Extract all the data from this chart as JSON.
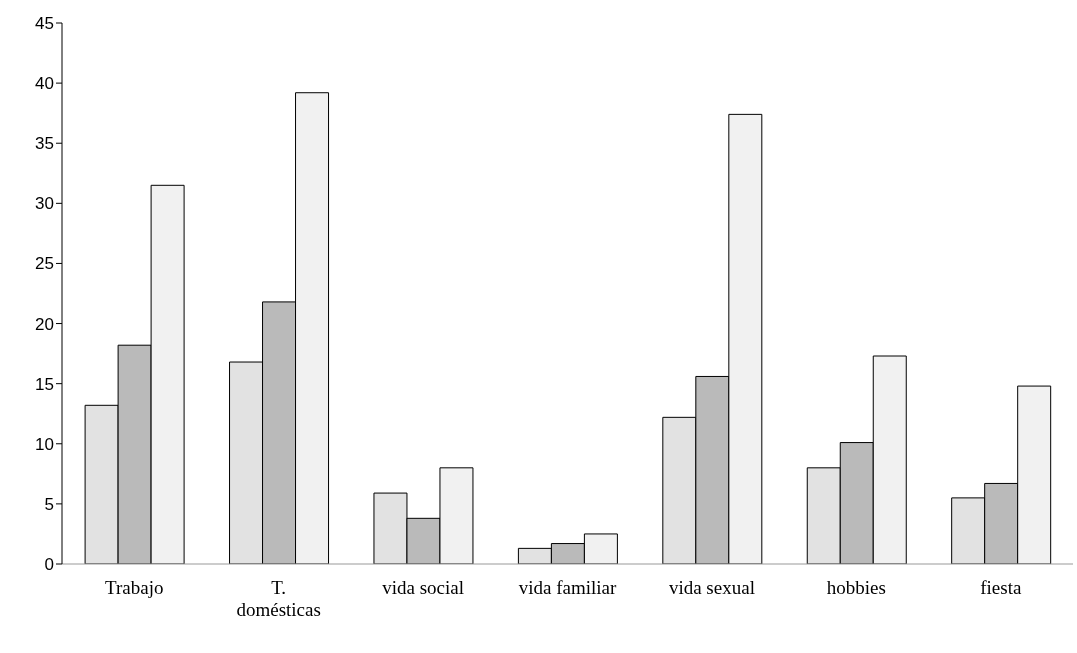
{
  "chart_data": {
    "type": "bar",
    "categories": [
      "Trabajo",
      "T.\ndomésticas",
      "vida social",
      "vida familiar",
      "vida sexual",
      "hobbies",
      "fiesta"
    ],
    "series": [
      {
        "color": "#e2e2e2",
        "values": [
          13.2,
          16.8,
          5.9,
          1.3,
          12.2,
          8.0,
          5.5
        ]
      },
      {
        "color": "#bababa",
        "values": [
          18.2,
          21.8,
          3.8,
          1.7,
          15.6,
          10.1,
          6.7
        ]
      },
      {
        "color": "#f1f1f1",
        "values": [
          31.5,
          39.2,
          8.0,
          2.5,
          37.4,
          17.3,
          14.8
        ]
      }
    ],
    "ylim": [
      0,
      45
    ],
    "yticks": [
      0,
      5,
      10,
      15,
      20,
      25,
      30,
      35,
      40,
      45
    ],
    "grid": false,
    "legend": false
  }
}
